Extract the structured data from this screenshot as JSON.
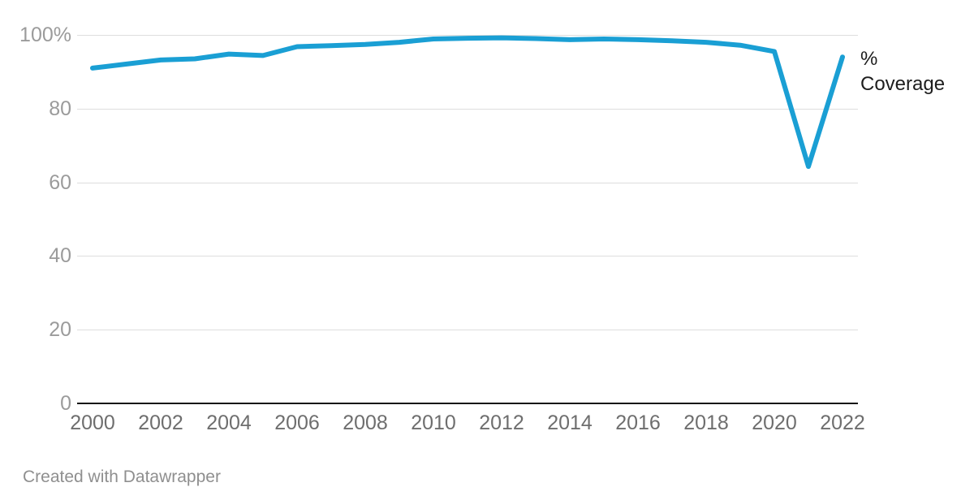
{
  "chart_data": {
    "type": "line",
    "x": [
      2000,
      2001,
      2002,
      2003,
      2004,
      2005,
      2006,
      2007,
      2008,
      2009,
      2010,
      2011,
      2012,
      2013,
      2014,
      2015,
      2016,
      2017,
      2018,
      2019,
      2020,
      2021,
      2022
    ],
    "series": [
      {
        "name": "% Coverage",
        "values": [
          91.0,
          92.1,
          93.2,
          93.5,
          94.8,
          94.4,
          96.8,
          97.1,
          97.4,
          98.0,
          98.9,
          99.1,
          99.2,
          99.0,
          98.7,
          98.9,
          98.7,
          98.4,
          98.0,
          97.2,
          95.5,
          64.3,
          94.0
        ]
      }
    ],
    "title": "",
    "xlabel": "",
    "ylabel": "",
    "ylim": [
      0,
      100
    ],
    "yticks": [
      100,
      80,
      60,
      40,
      20,
      0
    ],
    "ytick_labels": [
      "100%",
      "80",
      "60",
      "40",
      "20",
      "0"
    ],
    "xticks": [
      2000,
      2002,
      2004,
      2006,
      2008,
      2010,
      2012,
      2014,
      2016,
      2018,
      2020,
      2022
    ],
    "grid": true,
    "legend_position": "right-of-line-end",
    "line_color": "#1a9fd4",
    "grid_color": "#dddddd",
    "axis_color": "#161616"
  },
  "footer": {
    "credit": "Created with Datawrapper"
  }
}
